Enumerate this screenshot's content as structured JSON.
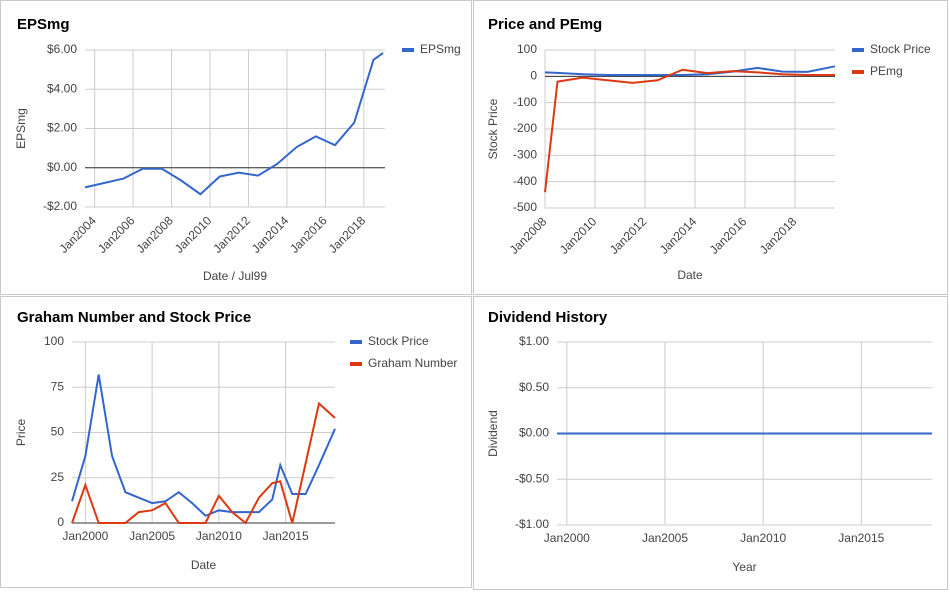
{
  "chart_data": [
    {
      "type": "line",
      "title": "EPSmg",
      "xlabel": "Date / Jul99",
      "ylabel": "EPSmg",
      "x": [
        2003.5,
        2005.5,
        2006.5,
        2007.5,
        2008.5,
        2009.5,
        2010.5,
        2011.5,
        2012.5,
        2013.5,
        2014.5,
        2015.5,
        2016.5,
        2017.5,
        2018.5,
        2019
      ],
      "series": [
        {
          "name": "EPSmg",
          "color": "#3366cc",
          "values": [
            -1.0,
            -0.55,
            -0.05,
            -0.05,
            -0.65,
            -1.35,
            -0.45,
            -0.25,
            -0.4,
            0.2,
            1.05,
            1.6,
            1.15,
            2.3,
            5.5,
            5.85
          ]
        }
      ],
      "xlim": [
        2003.5,
        2019.1
      ],
      "xticks": [
        {
          "value": 2004,
          "label": "Jan2004"
        },
        {
          "value": 2006,
          "label": "Jan2006"
        },
        {
          "value": 2008,
          "label": "Jan2008"
        },
        {
          "value": 2010,
          "label": "Jan2010"
        },
        {
          "value": 2012,
          "label": "Jan2012"
        },
        {
          "value": 2014,
          "label": "Jan2014"
        },
        {
          "value": 2016,
          "label": "Jan2016"
        },
        {
          "value": 2018,
          "label": "Jan2018"
        }
      ],
      "ylim": [
        -2,
        6
      ],
      "yticks": [
        {
          "value": -2,
          "label": "-$2.00"
        },
        {
          "value": 0,
          "label": "$0.00"
        },
        {
          "value": 2,
          "label": "$2.00"
        },
        {
          "value": 4,
          "label": "$4.00"
        },
        {
          "value": 6,
          "label": "$6.00"
        }
      ],
      "grid": true,
      "legend": "right"
    },
    {
      "type": "line",
      "title": "Price and PEmg",
      "xlabel": "Date",
      "ylabel": "Stock Price",
      "x": [
        2008,
        2008.5,
        2009.5,
        2010.5,
        2011.5,
        2012.5,
        2013.5,
        2014.5,
        2015.5,
        2016.5,
        2017.5,
        2018.5,
        2019.6
      ],
      "series": [
        {
          "name": "Stock Price",
          "color": "#3366cc",
          "values": [
            15,
            13,
            8,
            5,
            5,
            5,
            5,
            8,
            18,
            32,
            18,
            17,
            38
          ]
        },
        {
          "name": "PEmg",
          "color": "#dc3912",
          "values": [
            -440,
            -20,
            -5,
            -15,
            -25,
            -15,
            25,
            12,
            20,
            15,
            8,
            5,
            5
          ]
        }
      ],
      "xlim": [
        2008,
        2019.6
      ],
      "xticks": [
        {
          "value": 2008,
          "label": "Jan2008"
        },
        {
          "value": 2010,
          "label": "Jan2010"
        },
        {
          "value": 2012,
          "label": "Jan2012"
        },
        {
          "value": 2014,
          "label": "Jan2014"
        },
        {
          "value": 2016,
          "label": "Jan2016"
        },
        {
          "value": 2018,
          "label": "Jan2018"
        }
      ],
      "ylim": [
        -500,
        100
      ],
      "yticks": [
        -500,
        -400,
        -300,
        -200,
        -100,
        0,
        100
      ],
      "grid": true,
      "legend": "right"
    },
    {
      "type": "line",
      "title": "Graham Number and Stock Price",
      "xlabel": "Date",
      "ylabel": "Price",
      "x": [
        1999,
        2000,
        2001,
        2002,
        2003,
        2004,
        2005,
        2006,
        2007,
        2008,
        2009,
        2010,
        2011,
        2012,
        2013,
        2014,
        2014.6,
        2015.5,
        2016.5,
        2017.5,
        2018.7
      ],
      "series": [
        {
          "name": "Stock Price",
          "color": "#3366cc",
          "values": [
            12,
            37,
            82,
            37,
            17,
            14,
            11,
            12,
            17,
            11,
            4,
            7,
            6,
            6,
            6,
            13,
            32,
            16,
            16,
            32,
            52
          ]
        },
        {
          "name": "Graham Number",
          "color": "#dc3912",
          "values": [
            0,
            21,
            0,
            0,
            0,
            6,
            7,
            11,
            0,
            0,
            0,
            15,
            6,
            0,
            14,
            22,
            23,
            0,
            33,
            66,
            58
          ]
        }
      ],
      "xlim": [
        1999,
        2018.7
      ],
      "xticks": [
        {
          "value": 2000,
          "label": "Jan2000"
        },
        {
          "value": 2005,
          "label": "Jan2005"
        },
        {
          "value": 2010,
          "label": "Jan2010"
        },
        {
          "value": 2015,
          "label": "Jan2015"
        }
      ],
      "ylim": [
        0,
        100
      ],
      "yticks": [
        0,
        25,
        50,
        75,
        100
      ],
      "grid": true,
      "legend": "right"
    },
    {
      "type": "line",
      "title": "Dividend History",
      "xlabel": "Year",
      "ylabel": "Dividend",
      "x": [
        1999.5,
        2018.6
      ],
      "series": [
        {
          "color": "#3366cc",
          "values": [
            0,
            0
          ]
        }
      ],
      "xlim": [
        1999.5,
        2018.6
      ],
      "xticks": [
        {
          "value": 2000,
          "label": "Jan2000"
        },
        {
          "value": 2005,
          "label": "Jan2005"
        },
        {
          "value": 2010,
          "label": "Jan2010"
        },
        {
          "value": 2015,
          "label": "Jan2015"
        }
      ],
      "ylim": [
        -1,
        1
      ],
      "yticks": [
        {
          "value": -1,
          "label": "-$1.00"
        },
        {
          "value": -0.5,
          "label": "-$0.50"
        },
        {
          "value": 0,
          "label": "$0.00"
        },
        {
          "value": 0.5,
          "label": "$0.50"
        },
        {
          "value": 1,
          "label": "$1.00"
        }
      ],
      "grid": true
    }
  ]
}
